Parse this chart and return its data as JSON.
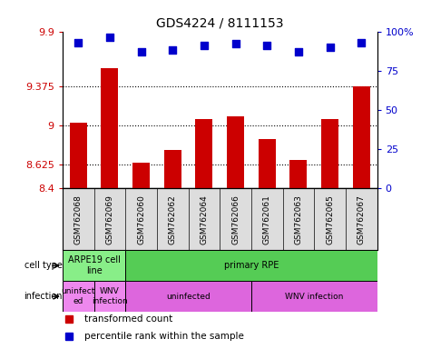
{
  "title": "GDS4224 / 8111153",
  "samples": [
    "GSM762068",
    "GSM762069",
    "GSM762060",
    "GSM762062",
    "GSM762064",
    "GSM762066",
    "GSM762061",
    "GSM762063",
    "GSM762065",
    "GSM762067"
  ],
  "red_values": [
    9.03,
    9.55,
    8.65,
    8.77,
    9.06,
    9.09,
    8.87,
    8.67,
    9.06,
    9.375
  ],
  "blue_values": [
    93,
    96,
    87,
    88,
    91,
    92,
    91,
    87,
    90,
    93
  ],
  "ylim_left": [
    8.4,
    9.9
  ],
  "ylim_right": [
    0,
    100
  ],
  "yticks_left": [
    8.4,
    8.625,
    9.0,
    9.375,
    9.9
  ],
  "yticks_right": [
    0,
    25,
    50,
    75,
    100
  ],
  "ytick_labels_left": [
    "8.4",
    "8.625",
    "9",
    "9.375",
    "9.9"
  ],
  "ytick_labels_right": [
    "0",
    "25",
    "50",
    "75",
    "100%"
  ],
  "hlines": [
    8.625,
    9.0,
    9.375
  ],
  "bar_color": "#cc0000",
  "dot_color": "#0000cc",
  "cell_type_row": [
    {
      "label": "ARPE19 cell\nline",
      "start": 0,
      "end": 2,
      "color": "#88ee88"
    },
    {
      "label": "primary RPE",
      "start": 2,
      "end": 10,
      "color": "#55cc55"
    }
  ],
  "infection_row": [
    {
      "label": "uninfect\ned",
      "start": 0,
      "end": 1,
      "color": "#ee88ee"
    },
    {
      "label": "WNV\ninfection",
      "start": 1,
      "end": 2,
      "color": "#ee88ee"
    },
    {
      "label": "uninfected",
      "start": 2,
      "end": 6,
      "color": "#dd66dd"
    },
    {
      "label": "WNV infection",
      "start": 6,
      "end": 10,
      "color": "#dd66dd"
    }
  ],
  "row_labels": [
    "cell type",
    "infection"
  ],
  "legend_items": [
    {
      "label": "transformed count",
      "color": "#cc0000",
      "marker": "s"
    },
    {
      "label": "percentile rank within the sample",
      "color": "#0000cc",
      "marker": "s"
    }
  ],
  "background_color": "#ffffff",
  "tick_color_left": "#cc0000",
  "tick_color_right": "#0000cc",
  "xticklabel_bg": "#dddddd"
}
